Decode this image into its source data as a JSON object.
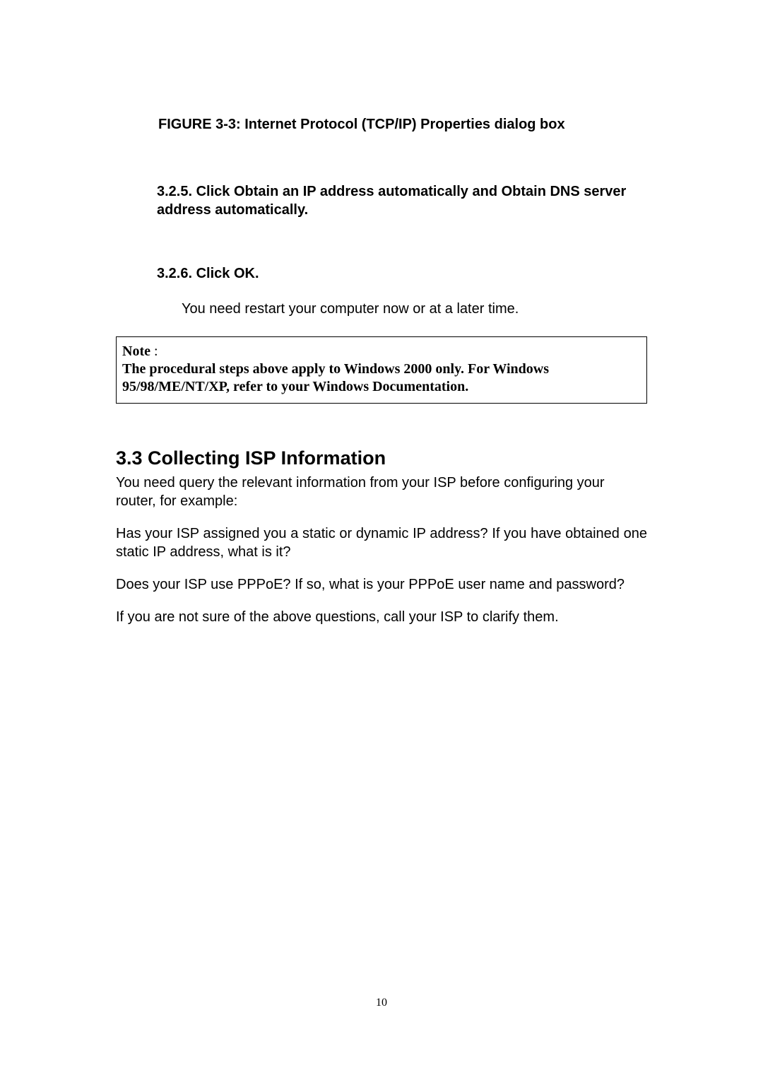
{
  "figure": {
    "caption": "FIGURE 3-3: Internet Protocol (TCP/IP) Properties dialog box"
  },
  "section325": {
    "heading": "3.2.5. Click Obtain an IP address automatically and Obtain DNS server address automatically."
  },
  "section326": {
    "heading": "3.2.6. Click OK.",
    "body": "You need restart your computer now or at a later time."
  },
  "note": {
    "label": "Note",
    "colon": " :",
    "content": "The procedural steps above apply to Windows 2000 only. For Windows 95/98/ME/NT/XP, refer to your Windows Documentation."
  },
  "section33": {
    "title": "3.3 Collecting ISP Information",
    "paragraph1": "You need query the relevant information from your ISP before configuring your router, for example:",
    "paragraph2": "Has your ISP assigned you a static or dynamic IP address? If you have obtained one static IP address, what is it?",
    "paragraph3": "Does your ISP use PPPoE? If so, what is your PPPoE user name and password?",
    "paragraph4": "If you are not sure of the above questions, call your ISP to clarify them."
  },
  "pageNumber": "10"
}
